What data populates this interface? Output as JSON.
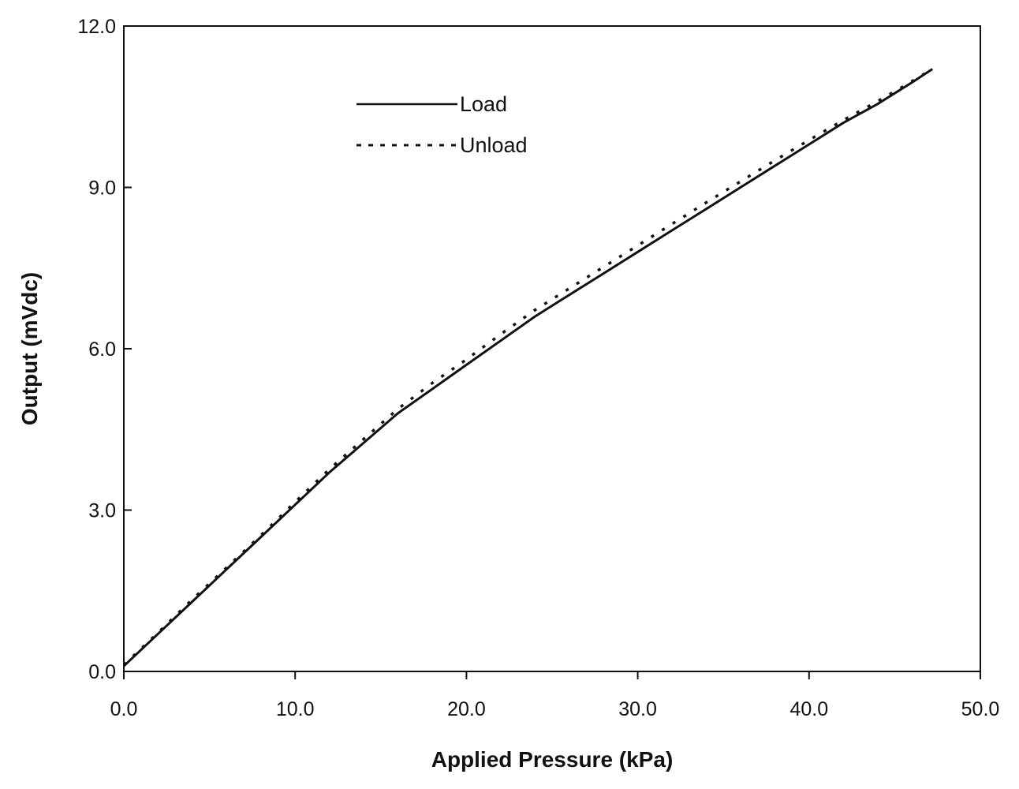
{
  "chart_data": {
    "type": "line",
    "xlabel": "Applied Pressure (kPa)",
    "ylabel": "Output (mVdc)",
    "xlim": [
      0,
      50
    ],
    "ylim": [
      0,
      12
    ],
    "x_ticks": [
      "0.0",
      "10.0",
      "20.0",
      "30.0",
      "40.0",
      "50.0"
    ],
    "y_ticks": [
      "0.0",
      "3.0",
      "6.0",
      "9.0",
      "12.0"
    ],
    "grid": false,
    "legend_position": "upper-left",
    "series": [
      {
        "name": "Load",
        "style": "solid",
        "x": [
          0,
          2,
          4,
          6,
          8,
          10,
          12,
          14,
          16,
          18,
          20,
          22,
          24,
          26,
          28,
          30,
          32,
          34,
          36,
          38,
          40,
          42,
          44,
          46,
          47.2
        ],
        "y": [
          0.1,
          0.7,
          1.3,
          1.9,
          2.5,
          3.1,
          3.7,
          4.25,
          4.8,
          5.25,
          5.7,
          6.15,
          6.6,
          7.0,
          7.4,
          7.8,
          8.2,
          8.6,
          9.0,
          9.4,
          9.8,
          10.2,
          10.55,
          10.95,
          11.2
        ]
      },
      {
        "name": "Unload",
        "style": "dotted",
        "x": [
          0,
          2,
          4,
          6,
          8,
          10,
          12,
          14,
          16,
          18,
          20,
          22,
          24,
          26,
          28,
          30,
          32,
          34,
          36,
          38,
          40,
          42,
          44,
          46,
          47.2
        ],
        "y": [
          0.12,
          0.72,
          1.34,
          1.93,
          2.53,
          3.15,
          3.76,
          4.32,
          4.88,
          5.36,
          5.8,
          6.27,
          6.72,
          7.12,
          7.52,
          7.92,
          8.32,
          8.72,
          9.11,
          9.5,
          9.88,
          10.25,
          10.6,
          10.97,
          11.2
        ]
      }
    ]
  }
}
